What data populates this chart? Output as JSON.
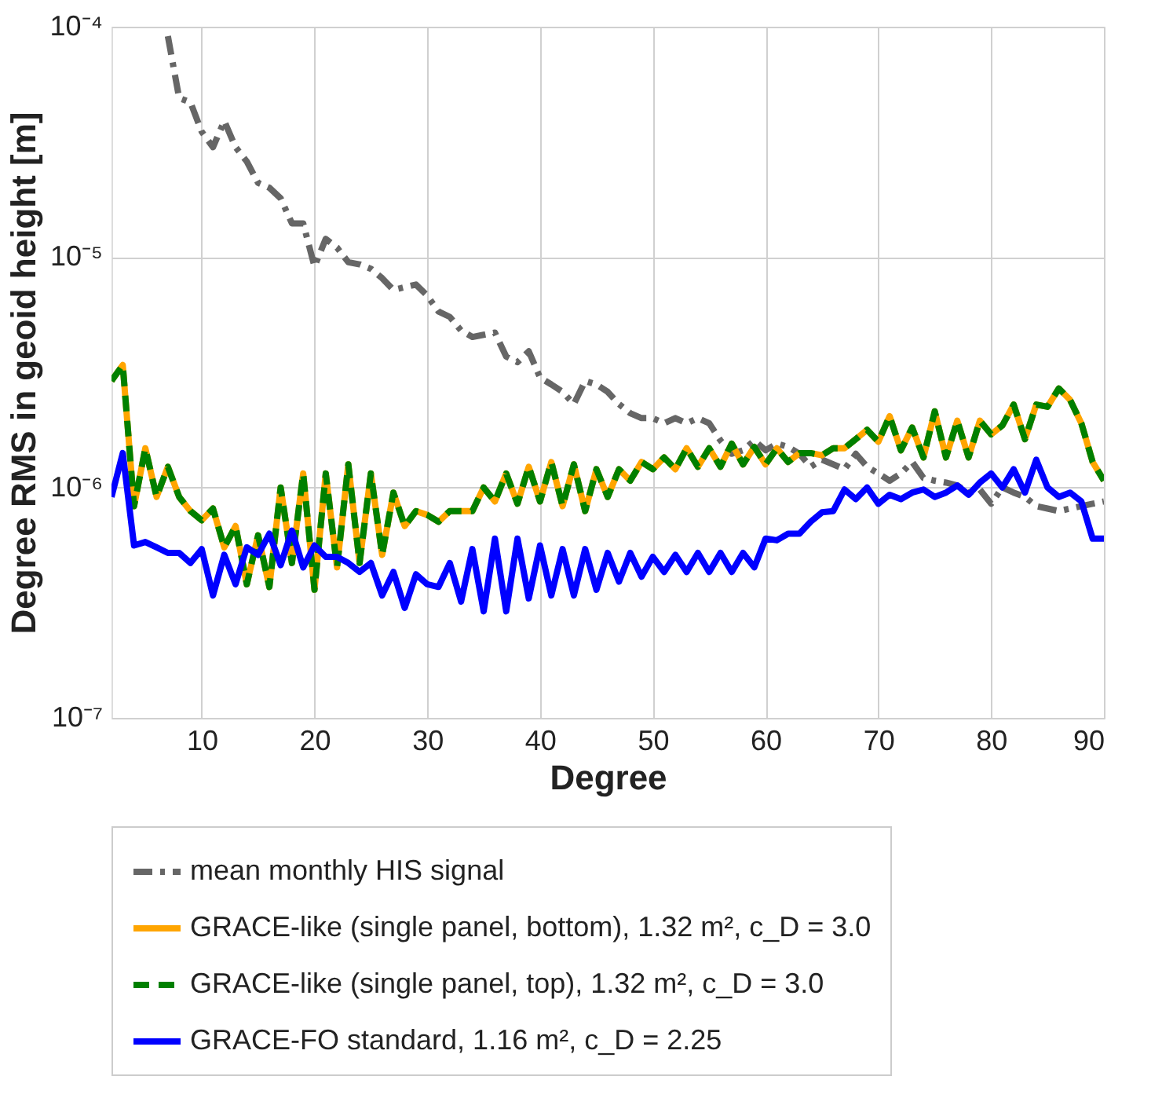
{
  "chart_data": {
    "type": "line",
    "xlabel": "Degree",
    "ylabel": "Degree RMS in geoid height [m]",
    "x": [
      2,
      3,
      4,
      5,
      6,
      7,
      8,
      9,
      10,
      11,
      12,
      13,
      14,
      15,
      16,
      17,
      18,
      19,
      20,
      21,
      22,
      23,
      24,
      25,
      26,
      27,
      28,
      29,
      30,
      31,
      32,
      33,
      34,
      35,
      36,
      37,
      38,
      39,
      40,
      41,
      42,
      43,
      44,
      45,
      46,
      47,
      48,
      49,
      50,
      51,
      52,
      53,
      54,
      55,
      56,
      57,
      58,
      59,
      60,
      61,
      62,
      63,
      64,
      65,
      66,
      67,
      68,
      69,
      70,
      71,
      72,
      73,
      74,
      75,
      76,
      77,
      78,
      79,
      80,
      81,
      82,
      83,
      84,
      85,
      86,
      87,
      88,
      89,
      90
    ],
    "xlim": [
      2,
      90
    ],
    "xticks": [
      10,
      20,
      30,
      40,
      50,
      60,
      70,
      80,
      90
    ],
    "ylim": [
      1e-07,
      0.0001
    ],
    "log": true,
    "yticks": [
      {
        "value": 1e-07,
        "label": "10⁻⁷"
      },
      {
        "value": 1e-06,
        "label": "10⁻⁶"
      },
      {
        "value": 1e-05,
        "label": "10⁻⁵"
      },
      {
        "value": 0.0001,
        "label": "10⁻⁴"
      }
    ],
    "grid": true,
    "legend": "bottom",
    "marker": "none",
    "series": [
      {
        "name": "mean monthly HIS signal",
        "color": "#666666",
        "line_style": "dashdot",
        "x": [
          7,
          8,
          9,
          10,
          11,
          12,
          13,
          14,
          15,
          16,
          17,
          18,
          19,
          20,
          21,
          22,
          23,
          24,
          25,
          26,
          27,
          28,
          29,
          30,
          31,
          32,
          33,
          34,
          35,
          36,
          37,
          38,
          39,
          40,
          41,
          42,
          43,
          44,
          45,
          46,
          47,
          48,
          49,
          50,
          51,
          52,
          53,
          54,
          55,
          56,
          57,
          58,
          59,
          60,
          61,
          62,
          63,
          64,
          65,
          66,
          67,
          68,
          69,
          70,
          71,
          72,
          73,
          74,
          75,
          76,
          77,
          78,
          79,
          80,
          81,
          82,
          83,
          84,
          85,
          86,
          87,
          88,
          89,
          90
        ],
        "values": [
          9.1e-05,
          4.9e-05,
          4.7e-05,
          3.5e-05,
          3e-05,
          3.9e-05,
          3e-05,
          2.6e-05,
          2.1e-05,
          2e-05,
          1.8e-05,
          1.4e-05,
          1.4e-05,
          9.1e-06,
          1.2e-05,
          1.1e-05,
          9.5e-06,
          9.3e-06,
          8.9e-06,
          8.1e-06,
          7.2e-06,
          7.4e-06,
          7.6e-06,
          6.8e-06,
          5.8e-06,
          5.5e-06,
          4.8e-06,
          4.5e-06,
          4.6e-06,
          4.7e-06,
          3.7e-06,
          3.5e-06,
          3.9e-06,
          3e-06,
          2.8e-06,
          2.6e-06,
          2.3e-06,
          2.9e-06,
          2.8e-06,
          2.6e-06,
          2.3e-06,
          2.1e-06,
          2e-06,
          2e-06,
          1.9e-06,
          2e-06,
          1.9e-06,
          2e-06,
          1.9e-06,
          1.6e-06,
          1.4e-06,
          1.45e-06,
          1.6e-06,
          1.45e-06,
          1.55e-06,
          1.5e-06,
          1.4e-06,
          1.23e-06,
          1.32e-06,
          1.26e-06,
          1.2e-06,
          1.4e-06,
          1.23e-06,
          1.15e-06,
          1.07e-06,
          1.15e-06,
          1.29e-06,
          1.1e-06,
          1.07e-06,
          1.05e-06,
          1.02e-06,
          9.5e-07,
          9.8e-07,
          8.5e-07,
          1e-06,
          9.5e-07,
          9.1e-07,
          8.3e-07,
          8.1e-07,
          7.9e-07,
          8.1e-07,
          8.3e-07,
          8.5e-07,
          8.7e-07
        ]
      },
      {
        "name": "GRACE-like (single panel, bottom), 1.32 m², c_D = 3.0",
        "color": "#ffa500",
        "line_style": "solid",
        "values": [
          2.9e-06,
          3.4e-06,
          8.3e-07,
          1.48e-06,
          9.1e-07,
          1.23e-06,
          9.1e-07,
          7.9e-07,
          7.2e-07,
          8.1e-07,
          5.5e-07,
          6.8e-07,
          3.8e-07,
          6.2e-07,
          3.7e-07,
          1e-06,
          4.7e-07,
          1.15e-06,
          3.6e-07,
          1.15e-06,
          4.5e-07,
          1.26e-06,
          4.7e-07,
          1.15e-06,
          5.1e-07,
          9.5e-07,
          6.8e-07,
          7.9e-07,
          7.6e-07,
          7.1e-07,
          7.9e-07,
          7.9e-07,
          7.9e-07,
          1e-06,
          8.7e-07,
          1.15e-06,
          8.5e-07,
          1.23e-06,
          8.7e-07,
          1.29e-06,
          8.3e-07,
          1.26e-06,
          7.9e-07,
          1.2e-06,
          9.1e-07,
          1.2e-06,
          1.07e-06,
          1.29e-06,
          1.2e-06,
          1.35e-06,
          1.2e-06,
          1.48e-06,
          1.23e-06,
          1.48e-06,
          1.23e-06,
          1.55e-06,
          1.26e-06,
          1.5e-06,
          1.26e-06,
          1.48e-06,
          1.29e-06,
          1.41e-06,
          1.41e-06,
          1.38e-06,
          1.48e-06,
          1.48e-06,
          1.62e-06,
          1.78e-06,
          1.58e-06,
          2.04e-06,
          1.45e-06,
          1.82e-06,
          1.35e-06,
          2.14e-06,
          1.35e-06,
          1.95e-06,
          1.35e-06,
          1.95e-06,
          1.7e-06,
          1.86e-06,
          2.29e-06,
          1.62e-06,
          2.29e-06,
          2.24e-06,
          2.69e-06,
          2.4e-06,
          1.9e-06,
          1.29e-06,
          1.07e-06
        ]
      },
      {
        "name": "GRACE-like (single panel, top), 1.32 m², c_D = 3.0",
        "color": "#008000",
        "line_style": "dashed",
        "values": [
          2.9e-06,
          3.4e-06,
          8.3e-07,
          1.48e-06,
          9.1e-07,
          1.23e-06,
          9.1e-07,
          7.9e-07,
          7.2e-07,
          8.1e-07,
          5.5e-07,
          6.8e-07,
          3.8e-07,
          6.2e-07,
          3.7e-07,
          1e-06,
          4.7e-07,
          1.15e-06,
          3.6e-07,
          1.15e-06,
          4.5e-07,
          1.26e-06,
          4.7e-07,
          1.15e-06,
          5.1e-07,
          9.5e-07,
          6.8e-07,
          7.9e-07,
          7.6e-07,
          7.1e-07,
          7.9e-07,
          7.9e-07,
          7.9e-07,
          1e-06,
          8.7e-07,
          1.15e-06,
          8.5e-07,
          1.23e-06,
          8.7e-07,
          1.29e-06,
          8.3e-07,
          1.26e-06,
          7.9e-07,
          1.2e-06,
          9.1e-07,
          1.2e-06,
          1.07e-06,
          1.29e-06,
          1.2e-06,
          1.35e-06,
          1.2e-06,
          1.48e-06,
          1.23e-06,
          1.48e-06,
          1.23e-06,
          1.55e-06,
          1.26e-06,
          1.5e-06,
          1.26e-06,
          1.48e-06,
          1.29e-06,
          1.41e-06,
          1.41e-06,
          1.38e-06,
          1.48e-06,
          1.48e-06,
          1.62e-06,
          1.78e-06,
          1.58e-06,
          2.04e-06,
          1.45e-06,
          1.82e-06,
          1.35e-06,
          2.14e-06,
          1.35e-06,
          1.95e-06,
          1.35e-06,
          1.95e-06,
          1.7e-06,
          1.86e-06,
          2.29e-06,
          1.62e-06,
          2.29e-06,
          2.24e-06,
          2.69e-06,
          2.4e-06,
          1.9e-06,
          1.29e-06,
          1.07e-06
        ]
      },
      {
        "name": "GRACE-FO standard, 1.16 m², c_D = 2.25",
        "color": "#0000ff",
        "line_style": "solid",
        "values": [
          9.1e-07,
          1.41e-06,
          5.6e-07,
          5.8e-07,
          5.5e-07,
          5.2e-07,
          5.2e-07,
          4.7e-07,
          5.4e-07,
          3.4e-07,
          5.1e-07,
          3.8e-07,
          5.5e-07,
          5.1e-07,
          6.3e-07,
          4.6e-07,
          6.5e-07,
          4.5e-07,
          5.6e-07,
          5e-07,
          5e-07,
          4.7e-07,
          4.3e-07,
          4.7e-07,
          3.4e-07,
          4.3e-07,
          3e-07,
          4.2e-07,
          3.8e-07,
          3.7e-07,
          4.7e-07,
          3.2e-07,
          5.4e-07,
          2.9e-07,
          6e-07,
          2.9e-07,
          6e-07,
          3.3e-07,
          5.6e-07,
          3.4e-07,
          5.4e-07,
          3.4e-07,
          5.4e-07,
          3.6e-07,
          5.2e-07,
          3.9e-07,
          5.2e-07,
          4.1e-07,
          5e-07,
          4.3e-07,
          5.1e-07,
          4.3e-07,
          5.2e-07,
          4.3e-07,
          5.2e-07,
          4.3e-07,
          5.2e-07,
          4.5e-07,
          6e-07,
          5.9e-07,
          6.3e-07,
          6.3e-07,
          7.1e-07,
          7.8e-07,
          7.9e-07,
          9.8e-07,
          8.9e-07,
          1e-06,
          8.5e-07,
          9.3e-07,
          8.9e-07,
          9.5e-07,
          9.8e-07,
          9.1e-07,
          9.5e-07,
          1.02e-06,
          9.3e-07,
          1.05e-06,
          1.15e-06,
          1e-06,
          1.2e-06,
          9.5e-07,
          1.32e-06,
          1e-06,
          9.1e-07,
          9.5e-07,
          8.7e-07,
          6e-07,
          6e-07
        ]
      }
    ]
  }
}
